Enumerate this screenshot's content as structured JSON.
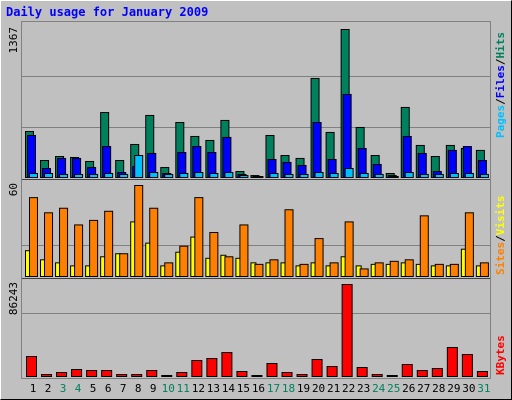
{
  "chart_data": [
    {
      "type": "bar",
      "title": "Daily usage for January 2009",
      "categories": [
        "1",
        "2",
        "3",
        "4",
        "5",
        "6",
        "7",
        "8",
        "9",
        "10",
        "11",
        "12",
        "13",
        "14",
        "15",
        "16",
        "17",
        "18",
        "19",
        "20",
        "21",
        "22",
        "23",
        "24",
        "25",
        "26",
        "27",
        "28",
        "29",
        "30",
        "31"
      ],
      "category_colors": [
        "#000000",
        "#000000",
        "#00805c",
        "#00805c",
        "#000000",
        "#000000",
        "#000000",
        "#000000",
        "#000000",
        "#00805c",
        "#00805c",
        "#000000",
        "#000000",
        "#000000",
        "#000000",
        "#000000",
        "#00805c",
        "#00805c",
        "#000000",
        "#000000",
        "#000000",
        "#000000",
        "#000000",
        "#00805c",
        "#00805c",
        "#000000",
        "#000000",
        "#000000",
        "#000000",
        "#000000",
        "#00805c"
      ],
      "legend_separator": "/",
      "ylim": [
        0,
        1367
      ],
      "yticks": [
        1367
      ],
      "series": [
        {
          "name": "Pages",
          "color": "#00c0ff",
          "values": [
            37,
            37,
            28,
            28,
            28,
            37,
            28,
            203,
            46,
            28,
            37,
            46,
            37,
            46,
            18,
            9,
            37,
            28,
            28,
            46,
            37,
            83,
            37,
            28,
            9,
            46,
            28,
            28,
            37,
            37,
            28
          ]
        },
        {
          "name": "Files",
          "color": "#0000ff",
          "values": [
            388,
            83,
            176,
            176,
            92,
            286,
            46,
            102,
            222,
            37,
            231,
            286,
            231,
            370,
            28,
            9,
            166,
            139,
            111,
            508,
            166,
            767,
            268,
            120,
            18,
            379,
            222,
            55,
            250,
            286,
            157
          ]
        },
        {
          "name": "Hits",
          "color": "#00805c",
          "values": [
            425,
            157,
            194,
            185,
            148,
            600,
            157,
            305,
            573,
            92,
            508,
            379,
            342,
            527,
            55,
            18,
            388,
            203,
            176,
            915,
            416,
            1367,
            462,
            203,
            37,
            647,
            296,
            194,
            296,
            268,
            250
          ]
        }
      ]
    },
    {
      "type": "bar",
      "ylim": [
        0,
        60
      ],
      "yticks": [
        60
      ],
      "legend_separator": "/",
      "series": [
        {
          "name": "Sites",
          "color": "#ff8000",
          "values": [
            52,
            42,
            45,
            34,
            37,
            43,
            15,
            60,
            45,
            9,
            20,
            52,
            29,
            13,
            34,
            8,
            11,
            44,
            8,
            25,
            9,
            36,
            5,
            9,
            10,
            11,
            40,
            8,
            8,
            42,
            9
          ]
        },
        {
          "name": "Visits",
          "color": "#ffff00",
          "values": [
            17,
            11,
            9,
            7,
            7,
            13,
            15,
            36,
            22,
            7,
            16,
            26,
            12,
            14,
            12,
            9,
            9,
            9,
            7,
            9,
            7,
            13,
            7,
            8,
            8,
            9,
            8,
            7,
            7,
            18,
            7
          ]
        }
      ]
    },
    {
      "type": "bar",
      "ylim": [
        0,
        86243
      ],
      "yticks": [
        86243
      ],
      "series": [
        {
          "name": "KBytes",
          "color": "#ff0000",
          "values": [
            18748,
            1875,
            3750,
            6562,
            5624,
            5624,
            1875,
            1875,
            5624,
            937,
            3750,
            15000,
            16874,
            22498,
            4687,
            937,
            12187,
            3750,
            1875,
            15937,
            9375,
            86243,
            8437,
            1875,
            937,
            11250,
            5624,
            7500,
            27186,
            20624,
            4687
          ]
        }
      ]
    }
  ]
}
